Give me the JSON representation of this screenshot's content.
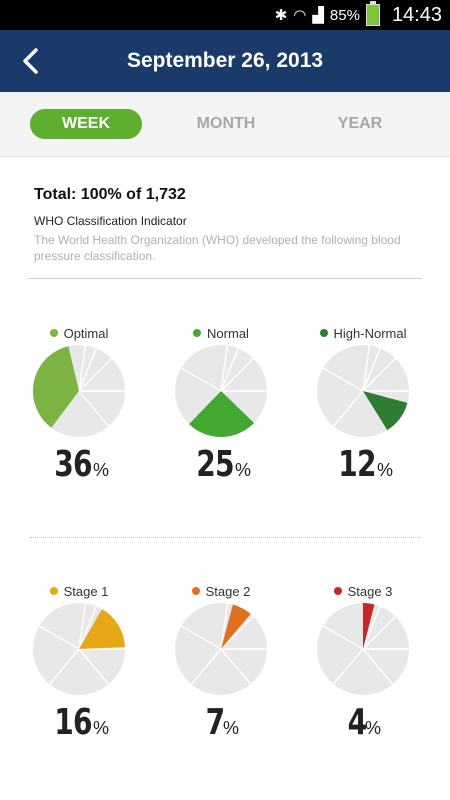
{
  "status": {
    "battery": "85%",
    "time": "14:43"
  },
  "header": {
    "title": "September 26, 2013"
  },
  "tabs": [
    {
      "label": "WEEK",
      "active": true
    },
    {
      "label": "MONTH",
      "active": false
    },
    {
      "label": "YEAR",
      "active": false
    }
  ],
  "summary": {
    "total": "Total: 100% of 1,732",
    "indicator": "WHO Classification Indicator",
    "description": "The World Health Organization (WHO) developed the following blood pressure classification."
  },
  "chart_data": [
    {
      "type": "pie",
      "title": "Optimal",
      "value": 36,
      "color": "#7cb342"
    },
    {
      "type": "pie",
      "title": "Normal",
      "value": 25,
      "color": "#43a82f"
    },
    {
      "type": "pie",
      "title": "High-Normal",
      "value": 12,
      "color": "#2e7d32"
    },
    {
      "type": "pie",
      "title": "Stage 1",
      "value": 16,
      "color": "#e6a817"
    },
    {
      "type": "pie",
      "title": "Stage 2",
      "value": 7,
      "color": "#e07020"
    },
    {
      "type": "pie",
      "title": "Stage 3",
      "value": 4,
      "color": "#c62828"
    }
  ],
  "pie_labels": [
    {
      "name": "Optimal",
      "num": "36",
      "unit": "%"
    },
    {
      "name": "Normal",
      "num": "25",
      "unit": "%"
    },
    {
      "name": "High-Normal",
      "num": "12",
      "unit": "%"
    },
    {
      "name": "Stage 1",
      "num": "16",
      "unit": "%"
    },
    {
      "name": "Stage 2",
      "num": "7",
      "unit": "%"
    },
    {
      "name": "Stage 3",
      "num": "4",
      "unit": "%"
    }
  ]
}
